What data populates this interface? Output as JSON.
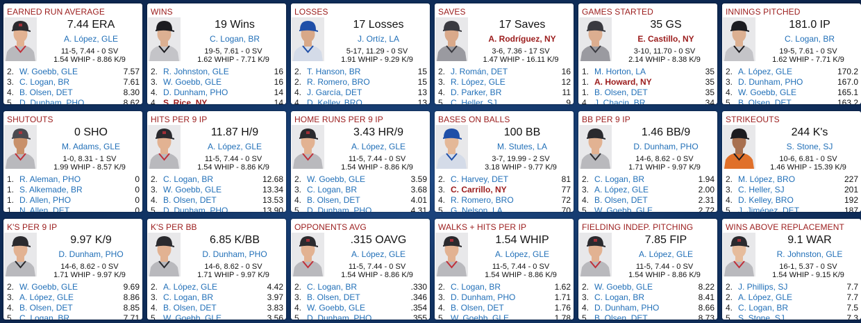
{
  "colors": {
    "title": "#9b1c1c",
    "link": "#2270b8",
    "highlight": "#9b1c1c",
    "background": "#123566"
  },
  "cards": [
    {
      "title": "EARNED RUN AVERAGE",
      "value": "7.44 ERA",
      "leader": "A. López, GLE",
      "leader_highlight": false,
      "line1": "11-5, 7.44 - 0 SV",
      "line2": "1.54 WHIP - 8.86 K/9",
      "portrait": {
        "jersey": "#b9b9bd",
        "cap": "#2a2a2e",
        "trim": "#c0303a",
        "skin": "#e2b292"
      },
      "rows": [
        {
          "rank": "2.",
          "name": "W. Goebb, GLE",
          "stat": "7.57"
        },
        {
          "rank": "3.",
          "name": "C. Logan, BR",
          "stat": "7.61"
        },
        {
          "rank": "4.",
          "name": "B. Olsen, DET",
          "stat": "8.30"
        },
        {
          "rank": "5.",
          "name": "D. Dunham, PHO",
          "stat": "8.62"
        }
      ]
    },
    {
      "title": "WINS",
      "value": "19 Wins",
      "leader": "C. Logan, BR",
      "leader_highlight": false,
      "line1": "19-5, 7.61 - 0 SV",
      "line2": "1.62 WHIP - 7.71 K/9",
      "portrait": {
        "jersey": "#c4c4c8",
        "cap": "#1c1c20",
        "trim": "#1c1c20",
        "skin": "#dcb092"
      },
      "rows": [
        {
          "rank": "2.",
          "name": "R. Johnston, GLE",
          "stat": "16"
        },
        {
          "rank": "3.",
          "name": "W. Goebb, GLE",
          "stat": "16"
        },
        {
          "rank": "4.",
          "name": "D. Dunham, PHO",
          "stat": "14"
        },
        {
          "rank": "4.",
          "name": "S. Rice, NY",
          "stat": "14",
          "highlight": true
        }
      ]
    },
    {
      "title": "LOSSES",
      "value": "17 Losses",
      "leader": "J. Ortíz, LA",
      "leader_highlight": false,
      "line1": "5-17, 11.29 - 0 SV",
      "line2": "1.91 WHIP - 9.29 K/9",
      "portrait": {
        "jersey": "#d4dbe8",
        "cap": "#1f4fa8",
        "trim": "#1f4fa8",
        "skin": "#d8a888"
      },
      "rows": [
        {
          "rank": "2.",
          "name": "T. Hanson, BR",
          "stat": "15"
        },
        {
          "rank": "2.",
          "name": "R. Romero, BRO",
          "stat": "15"
        },
        {
          "rank": "4.",
          "name": "J. García, DET",
          "stat": "13"
        },
        {
          "rank": "4.",
          "name": "D. Kelley, BRO",
          "stat": "13"
        }
      ]
    },
    {
      "title": "SAVES",
      "value": "17 Saves",
      "leader": "A. Rodríguez, NY",
      "leader_highlight": true,
      "line1": "3-6, 7.36 - 17 SV",
      "line2": "1.47 WHIP - 16.11 K/9",
      "portrait": {
        "jersey": "#9a9aa0",
        "cap": "#3a3a40",
        "trim": "#3a3a40",
        "skin": "#d9a98a"
      },
      "rows": [
        {
          "rank": "2.",
          "name": "J. Román, DET",
          "stat": "16"
        },
        {
          "rank": "3.",
          "name": "R. López, GLE",
          "stat": "12"
        },
        {
          "rank": "4.",
          "name": "D. Parker, BR",
          "stat": "11"
        },
        {
          "rank": "5.",
          "name": "C. Heller, SJ",
          "stat": "9"
        }
      ]
    },
    {
      "title": "GAMES STARTED",
      "value": "35 GS",
      "leader": "E. Castillo, NY",
      "leader_highlight": true,
      "line1": "3-10, 11.70 - 0 SV",
      "line2": "2.14 WHIP - 8.38 K/9",
      "portrait": {
        "jersey": "#9a9aa0",
        "cap": "#3a3a40",
        "trim": "#3a3a40",
        "skin": "#dcae90"
      },
      "rows": [
        {
          "rank": "1.",
          "name": "M. Horton, LA",
          "stat": "35"
        },
        {
          "rank": "1.",
          "name": "A. Howard, NY",
          "stat": "35",
          "highlight": true
        },
        {
          "rank": "1.",
          "name": "B. Olsen, DET",
          "stat": "35"
        },
        {
          "rank": "4.",
          "name": "J. Chacin, BR",
          "stat": "34"
        }
      ]
    },
    {
      "title": "INNINGS PITCHED",
      "value": "181.0 IP",
      "leader": "C. Logan, BR",
      "leader_highlight": false,
      "line1": "19-5, 7.61 - 0 SV",
      "line2": "1.62 WHIP - 7.71 K/9",
      "portrait": {
        "jersey": "#c4c4c8",
        "cap": "#1c1c20",
        "trim": "#1c1c20",
        "skin": "#dcb092"
      },
      "rows": [
        {
          "rank": "2.",
          "name": "A. López, GLE",
          "stat": "170.2"
        },
        {
          "rank": "3.",
          "name": "D. Dunham, PHO",
          "stat": "167.0"
        },
        {
          "rank": "4.",
          "name": "W. Goebb, GLE",
          "stat": "165.1"
        },
        {
          "rank": "5.",
          "name": "B. Olsen, DET",
          "stat": "163.2"
        }
      ]
    },
    {
      "title": "SHUTOUTS",
      "value": "0 SHO",
      "leader": "M. Adams, GLE",
      "leader_highlight": false,
      "line1": "1-0, 8.31 - 1 SV",
      "line2": "1.99 WHIP - 8.57 K/9",
      "portrait": {
        "jersey": "#b9b9bd",
        "cap": "#4a4a50",
        "trim": "#c0303a",
        "skin": "#c8906a"
      },
      "rows": [
        {
          "rank": "1.",
          "name": "R. Aleman, PHO",
          "stat": "0"
        },
        {
          "rank": "1.",
          "name": "S. Alkemade, BR",
          "stat": "0"
        },
        {
          "rank": "1.",
          "name": "D. Allen, PHO",
          "stat": "0"
        },
        {
          "rank": "1.",
          "name": "N. Allen, DET",
          "stat": "0"
        }
      ]
    },
    {
      "title": "HITS PER 9 IP",
      "value": "11.87 H/9",
      "leader": "A. López, GLE",
      "leader_highlight": false,
      "line1": "11-5, 7.44 - 0 SV",
      "line2": "1.54 WHIP - 8.86 K/9",
      "portrait": {
        "jersey": "#b9b9bd",
        "cap": "#2a2a2e",
        "trim": "#c0303a",
        "skin": "#e2b292"
      },
      "rows": [
        {
          "rank": "2.",
          "name": "C. Logan, BR",
          "stat": "12.68"
        },
        {
          "rank": "3.",
          "name": "W. Goebb, GLE",
          "stat": "13.34"
        },
        {
          "rank": "4.",
          "name": "B. Olsen, DET",
          "stat": "13.53"
        },
        {
          "rank": "5.",
          "name": "D. Dunham, PHO",
          "stat": "13.90"
        }
      ]
    },
    {
      "title": "HOME RUNS PER 9 IP",
      "value": "3.43 HR/9",
      "leader": "A. López, GLE",
      "leader_highlight": false,
      "line1": "11-5, 7.44 - 0 SV",
      "line2": "1.54 WHIP - 8.86 K/9",
      "portrait": {
        "jersey": "#b9b9bd",
        "cap": "#2a2a2e",
        "trim": "#c0303a",
        "skin": "#e2b292"
      },
      "rows": [
        {
          "rank": "2.",
          "name": "W. Goebb, GLE",
          "stat": "3.59"
        },
        {
          "rank": "3.",
          "name": "C. Logan, BR",
          "stat": "3.68"
        },
        {
          "rank": "4.",
          "name": "B. Olsen, DET",
          "stat": "4.01"
        },
        {
          "rank": "5.",
          "name": "D. Dunham, PHO",
          "stat": "4.31"
        }
      ]
    },
    {
      "title": "BASES ON BALLS",
      "value": "100 BB",
      "leader": "M. Stutes, LA",
      "leader_highlight": false,
      "line1": "3-7, 19.99 - 2 SV",
      "line2": "3.18 WHIP - 9.77 K/9",
      "portrait": {
        "jersey": "#d4dbe8",
        "cap": "#1f4fa8",
        "trim": "#1f4fa8",
        "skin": "#e4b898"
      },
      "rows": [
        {
          "rank": "2.",
          "name": "C. Harvey, DET",
          "stat": "81"
        },
        {
          "rank": "3.",
          "name": "C. Carrillo, NY",
          "stat": "77",
          "highlight": true
        },
        {
          "rank": "4.",
          "name": "R. Romero, BRO",
          "stat": "72"
        },
        {
          "rank": "5.",
          "name": "G. Nelson, LA",
          "stat": "70"
        }
      ]
    },
    {
      "title": "BB PER 9 IP",
      "value": "1.46 BB/9",
      "leader": "D. Dunham, PHO",
      "leader_highlight": false,
      "line1": "14-6, 8.62 - 0 SV",
      "line2": "1.71 WHIP - 9.97 K/9",
      "portrait": {
        "jersey": "#b9b9bd",
        "cap": "#2a2a2e",
        "trim": "#2a2a2e",
        "skin": "#e2b292"
      },
      "rows": [
        {
          "rank": "2.",
          "name": "C. Logan, BR",
          "stat": "1.94"
        },
        {
          "rank": "3.",
          "name": "A. López, GLE",
          "stat": "2.00"
        },
        {
          "rank": "4.",
          "name": "B. Olsen, DET",
          "stat": "2.31"
        },
        {
          "rank": "5.",
          "name": "W. Goebb, GLE",
          "stat": "2.72"
        }
      ]
    },
    {
      "title": "STRIKEOUTS",
      "value": "244 K's",
      "leader": "S. Stone, SJ",
      "leader_highlight": false,
      "line1": "10-6, 6.81 - 0 SV",
      "line2": "1.46 WHIP - 15.39 K/9",
      "portrait": {
        "jersey": "#e0702a",
        "cap": "#1c1c20",
        "trim": "#1c1c20",
        "skin": "#a87050"
      },
      "rows": [
        {
          "rank": "2.",
          "name": "M. López, BRO",
          "stat": "227"
        },
        {
          "rank": "3.",
          "name": "C. Heller, SJ",
          "stat": "201"
        },
        {
          "rank": "4.",
          "name": "D. Kelley, BRO",
          "stat": "192"
        },
        {
          "rank": "5.",
          "name": "J. Jiménez, DET",
          "stat": "187"
        }
      ]
    },
    {
      "title": "K'S PER 9 IP",
      "value": "9.97 K/9",
      "leader": "D. Dunham, PHO",
      "leader_highlight": false,
      "line1": "14-6, 8.62 - 0 SV",
      "line2": "1.71 WHIP - 9.97 K/9",
      "portrait": {
        "jersey": "#b9b9bd",
        "cap": "#2a2a2e",
        "trim": "#2a2a2e",
        "skin": "#e2b292"
      },
      "rows": [
        {
          "rank": "2.",
          "name": "W. Goebb, GLE",
          "stat": "9.69"
        },
        {
          "rank": "3.",
          "name": "A. López, GLE",
          "stat": "8.86"
        },
        {
          "rank": "4.",
          "name": "B. Olsen, DET",
          "stat": "8.85"
        },
        {
          "rank": "5.",
          "name": "C. Logan, BR",
          "stat": "7.71"
        }
      ]
    },
    {
      "title": "K'S PER BB",
      "value": "6.85 K/BB",
      "leader": "D. Dunham, PHO",
      "leader_highlight": false,
      "line1": "14-6, 8.62 - 0 SV",
      "line2": "1.71 WHIP - 9.97 K/9",
      "portrait": {
        "jersey": "#b9b9bd",
        "cap": "#2a2a2e",
        "trim": "#2a2a2e",
        "skin": "#e2b292"
      },
      "rows": [
        {
          "rank": "2.",
          "name": "A. López, GLE",
          "stat": "4.42"
        },
        {
          "rank": "3.",
          "name": "C. Logan, BR",
          "stat": "3.97"
        },
        {
          "rank": "4.",
          "name": "B. Olsen, DET",
          "stat": "3.83"
        },
        {
          "rank": "5.",
          "name": "W. Goebb, GLE",
          "stat": "3.56"
        }
      ]
    },
    {
      "title": "OPPONENTS AVG",
      "value": ".315 OAVG",
      "leader": "A. López, GLE",
      "leader_highlight": false,
      "line1": "11-5, 7.44 - 0 SV",
      "line2": "1.54 WHIP - 8.86 K/9",
      "portrait": {
        "jersey": "#b9b9bd",
        "cap": "#2a2a2e",
        "trim": "#c0303a",
        "skin": "#e2b292"
      },
      "rows": [
        {
          "rank": "2.",
          "name": "C. Logan, BR",
          "stat": ".330"
        },
        {
          "rank": "3.",
          "name": "B. Olsen, DET",
          "stat": ".346"
        },
        {
          "rank": "4.",
          "name": "W. Goebb, GLE",
          "stat": ".354"
        },
        {
          "rank": "5.",
          "name": "D. Dunham, PHO",
          "stat": ".355"
        }
      ]
    },
    {
      "title": "WALKS + HITS PER IP",
      "value": "1.54 WHIP",
      "leader": "A. López, GLE",
      "leader_highlight": false,
      "line1": "11-5, 7.44 - 0 SV",
      "line2": "1.54 WHIP - 8.86 K/9",
      "portrait": {
        "jersey": "#b9b9bd",
        "cap": "#2a2a2e",
        "trim": "#c0303a",
        "skin": "#e2b292"
      },
      "rows": [
        {
          "rank": "2.",
          "name": "C. Logan, BR",
          "stat": "1.62"
        },
        {
          "rank": "3.",
          "name": "D. Dunham, PHO",
          "stat": "1.71"
        },
        {
          "rank": "4.",
          "name": "B. Olsen, DET",
          "stat": "1.76"
        },
        {
          "rank": "5.",
          "name": "W. Goebb, GLE",
          "stat": "1.78"
        }
      ]
    },
    {
      "title": "FIELDING INDEP. PITCHING",
      "value": "7.85 FIP",
      "leader": "A. López, GLE",
      "leader_highlight": false,
      "line1": "11-5, 7.44 - 0 SV",
      "line2": "1.54 WHIP - 8.86 K/9",
      "portrait": {
        "jersey": "#b9b9bd",
        "cap": "#2a2a2e",
        "trim": "#c0303a",
        "skin": "#e2b292"
      },
      "rows": [
        {
          "rank": "2.",
          "name": "W. Goebb, GLE",
          "stat": "8.22"
        },
        {
          "rank": "3.",
          "name": "C. Logan, BR",
          "stat": "8.41"
        },
        {
          "rank": "4.",
          "name": "D. Dunham, PHO",
          "stat": "8.66"
        },
        {
          "rank": "5.",
          "name": "B. Olsen, DET",
          "stat": "8.73"
        }
      ]
    },
    {
      "title": "WINS ABOVE REPLACEMENT",
      "value": "9.1 WAR",
      "leader": "R. Johnston, GLE",
      "leader_highlight": false,
      "line1": "16-1, 5.37 - 0 SV",
      "line2": "1.54 WHIP - 9.15 K/9",
      "portrait": {
        "jersey": "#b9b9bd",
        "cap": "#2a2a2e",
        "trim": "#c0303a",
        "skin": "#e6bc9c"
      },
      "rows": [
        {
          "rank": "2.",
          "name": "J. Phillips, SJ",
          "stat": "7.7"
        },
        {
          "rank": "2.",
          "name": "A. López, GLE",
          "stat": "7.7"
        },
        {
          "rank": "4.",
          "name": "C. Logan, BR",
          "stat": "7.5"
        },
        {
          "rank": "5.",
          "name": "S. Stone, SJ",
          "stat": "7.3"
        }
      ]
    }
  ]
}
